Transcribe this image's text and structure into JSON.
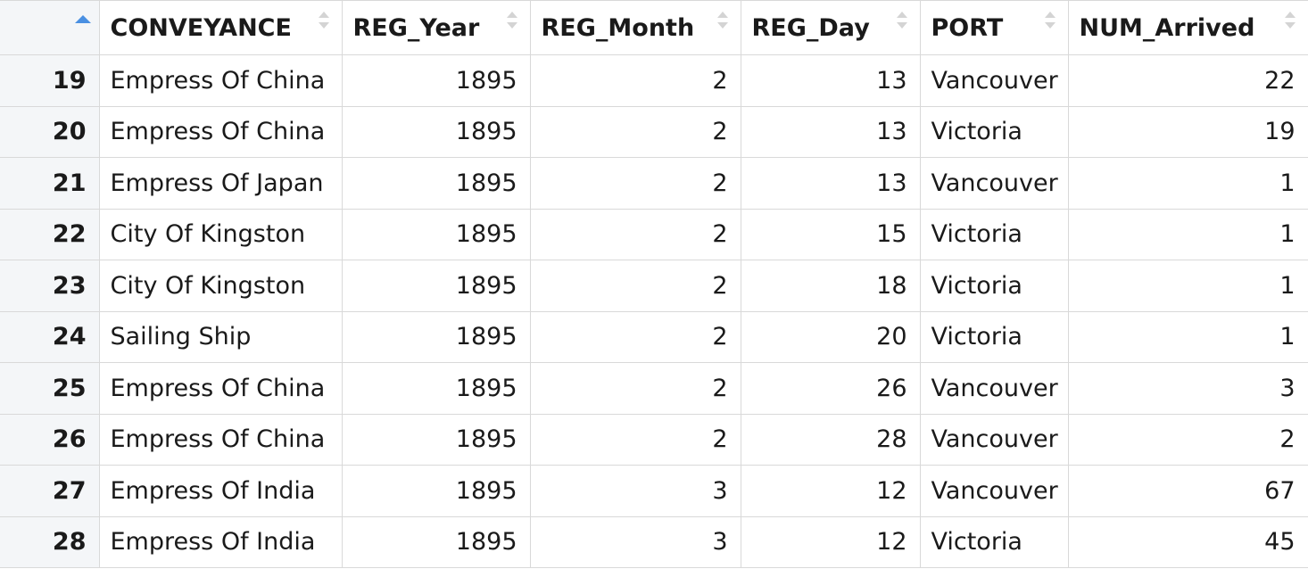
{
  "table": {
    "columns": [
      "CONVEYANCE",
      "REG_Year",
      "REG_Month",
      "REG_Day",
      "PORT",
      "NUM_Arrived"
    ],
    "sort_indicator": "ascending",
    "rows": [
      {
        "id": "19",
        "conveyance": "Empress Of China",
        "year": "1895",
        "month": "2",
        "day": "13",
        "port": "Vancouver",
        "arrived": "22"
      },
      {
        "id": "20",
        "conveyance": "Empress Of China",
        "year": "1895",
        "month": "2",
        "day": "13",
        "port": "Victoria",
        "arrived": "19"
      },
      {
        "id": "21",
        "conveyance": "Empress Of Japan",
        "year": "1895",
        "month": "2",
        "day": "13",
        "port": "Vancouver",
        "arrived": "1"
      },
      {
        "id": "22",
        "conveyance": "City Of Kingston",
        "year": "1895",
        "month": "2",
        "day": "15",
        "port": "Victoria",
        "arrived": "1"
      },
      {
        "id": "23",
        "conveyance": "City Of Kingston",
        "year": "1895",
        "month": "2",
        "day": "18",
        "port": "Victoria",
        "arrived": "1"
      },
      {
        "id": "24",
        "conveyance": "Sailing Ship",
        "year": "1895",
        "month": "2",
        "day": "20",
        "port": "Victoria",
        "arrived": "1"
      },
      {
        "id": "25",
        "conveyance": "Empress Of China",
        "year": "1895",
        "month": "2",
        "day": "26",
        "port": "Vancouver",
        "arrived": "3"
      },
      {
        "id": "26",
        "conveyance": "Empress Of China",
        "year": "1895",
        "month": "2",
        "day": "28",
        "port": "Vancouver",
        "arrived": "2"
      },
      {
        "id": "27",
        "conveyance": "Empress Of India",
        "year": "1895",
        "month": "3",
        "day": "12",
        "port": "Vancouver",
        "arrived": "67"
      },
      {
        "id": "28",
        "conveyance": "Empress Of India",
        "year": "1895",
        "month": "3",
        "day": "12",
        "port": "Victoria",
        "arrived": "45"
      }
    ]
  }
}
